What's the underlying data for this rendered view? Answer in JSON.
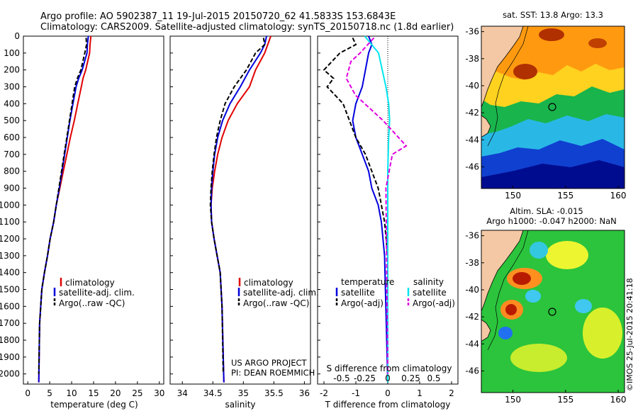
{
  "header": {
    "line1": "Argo profile: AO 5902387_11 19-Jul-2015 20150720_62 41.5833S 153.6843E",
    "line2": "Climatology: CARS2009. Satellite-adjusted climatology: synTS_20150718.nc (1.8d earlier)"
  },
  "colors": {
    "climatology": "#e00000",
    "satellite": "#0000dd",
    "argo": "#000000",
    "salinity_satellite": "#00e5ee",
    "salinity_argo": "#e000e0"
  },
  "chart_data": [
    {
      "type": "line",
      "id": "temperature",
      "xlabel": "temperature (deg C)",
      "ylabel": "",
      "xlim": [
        -1,
        31
      ],
      "ylim": [
        2060,
        0
      ],
      "xticks": [
        "0",
        "5",
        "10",
        "15",
        "20",
        "25",
        "30"
      ],
      "yticks": [
        "0",
        "100",
        "200",
        "300",
        "400",
        "500",
        "600",
        "700",
        "800",
        "900",
        "1000",
        "1100",
        "1200",
        "1300",
        "1400",
        "1500",
        "1600",
        "1700",
        "1800",
        "1900",
        "2000"
      ],
      "legend": [
        "climatology",
        "satellite-adj. clim.",
        "Argo(..raw -QC)"
      ],
      "series": [
        {
          "name": "climatology",
          "style": "solid",
          "x": [
            14.4,
            14.2,
            14.1,
            13.2,
            12.6,
            12.2,
            11.4,
            10.6,
            9.7,
            8.9,
            8.1,
            7.3,
            6.5,
            5.9,
            5.1,
            4.5,
            3.8,
            3.2,
            2.7,
            2.5
          ],
          "y": [
            0,
            50,
            100,
            200,
            250,
            300,
            400,
            500,
            600,
            700,
            800,
            900,
            1000,
            1100,
            1200,
            1300,
            1400,
            1500,
            1700,
            2050
          ]
        },
        {
          "name": "satellite",
          "style": "solid",
          "x": [
            13.8,
            13.6,
            13.5,
            12.4,
            11.6,
            11.0,
            10.3,
            9.6,
            9.0,
            8.4,
            7.8,
            7.2,
            6.5,
            5.9,
            5.1,
            4.5,
            3.8,
            3.2,
            2.7,
            2.5
          ],
          "y": [
            0,
            50,
            100,
            200,
            250,
            300,
            400,
            500,
            600,
            700,
            800,
            900,
            1000,
            1100,
            1200,
            1300,
            1400,
            1500,
            1700,
            2050
          ]
        },
        {
          "name": "argo",
          "style": "dash",
          "x": [
            13.3,
            13.4,
            13.0,
            12.1,
            11.3,
            10.7,
            10.1,
            9.5,
            8.9,
            8.3,
            7.7,
            7.1,
            6.5,
            5.9,
            5.1,
            4.5,
            3.8,
            3.2,
            2.7,
            2.5
          ],
          "y": [
            10,
            50,
            100,
            200,
            250,
            300,
            400,
            500,
            600,
            700,
            800,
            900,
            1000,
            1100,
            1200,
            1300,
            1400,
            1500,
            1700,
            2000
          ]
        }
      ]
    },
    {
      "type": "line",
      "id": "salinity",
      "xlabel": "salinity",
      "ylabel": "",
      "xlim": [
        33.8,
        36.1
      ],
      "ylim": [
        2060,
        0
      ],
      "xticks": [
        "34",
        "34.5",
        "35",
        "35.5",
        "36"
      ],
      "legend": [
        "climatology",
        "satellite-adj. clim.",
        "Argo(..raw -QC)"
      ],
      "annotation": [
        "US ARGO PROJECT",
        "PI: DEAN ROEMMICH"
      ],
      "series": [
        {
          "name": "climatology",
          "style": "solid",
          "x": [
            35.45,
            35.4,
            35.35,
            35.2,
            35.1,
            34.9,
            34.75,
            34.65,
            34.58,
            34.53,
            34.49,
            34.47,
            34.48,
            34.52,
            34.57,
            34.62,
            34.65,
            34.68
          ],
          "y": [
            0,
            50,
            100,
            200,
            300,
            400,
            500,
            600,
            700,
            800,
            900,
            1000,
            1100,
            1200,
            1300,
            1400,
            1600,
            2050
          ]
        },
        {
          "name": "satellite",
          "style": "solid",
          "x": [
            35.38,
            35.35,
            35.28,
            35.1,
            34.95,
            34.78,
            34.66,
            34.58,
            34.53,
            34.5,
            34.48,
            34.47,
            34.48,
            34.52,
            34.57,
            34.62,
            34.65,
            34.68
          ],
          "y": [
            0,
            50,
            100,
            200,
            300,
            400,
            500,
            600,
            700,
            800,
            900,
            1000,
            1100,
            1200,
            1300,
            1400,
            1600,
            2050
          ]
        },
        {
          "name": "argo",
          "style": "dash",
          "x": [
            35.33,
            35.35,
            35.2,
            35.05,
            34.85,
            34.7,
            34.62,
            34.56,
            34.52,
            34.49,
            34.47,
            34.46,
            34.48,
            34.52,
            34.57,
            34.62,
            34.65,
            34.67
          ],
          "y": [
            10,
            50,
            100,
            200,
            300,
            400,
            500,
            600,
            700,
            800,
            900,
            1000,
            1100,
            1200,
            1300,
            1400,
            1600,
            2000
          ]
        }
      ]
    },
    {
      "type": "line",
      "id": "difference",
      "xlabel": "T difference from climatology",
      "s_axis_label": "S difference from climatology",
      "xlim": [
        -2.2,
        2.2
      ],
      "ylim": [
        2060,
        0
      ],
      "xticks": [
        "-2",
        "-1",
        "0",
        "1",
        "2"
      ],
      "s_ticks": [
        "-0.5",
        "-0.25",
        "0",
        "0.25",
        "0.5"
      ],
      "legend_temperature": [
        "temperature",
        "satellite",
        "Argo(-adj)"
      ],
      "legend_salinity": [
        "salinity",
        "satellite",
        "Argo(-adj)"
      ],
      "series": [
        {
          "name": "T satellite",
          "style": "solid",
          "x": [
            -0.6,
            -0.5,
            -0.6,
            -0.7,
            -0.8,
            -1.0,
            -1.1,
            -1.0,
            -0.8,
            -0.6,
            -0.5,
            -0.3,
            -0.2,
            -0.1,
            0
          ],
          "y": [
            0,
            50,
            100,
            200,
            300,
            400,
            500,
            600,
            700,
            800,
            900,
            1000,
            1100,
            1300,
            2050
          ]
        },
        {
          "name": "T argo",
          "style": "dash",
          "x": [
            -1.1,
            -1.0,
            -1.5,
            -2.0,
            -1.7,
            -1.9,
            -1.4,
            -1.2,
            -1.0,
            -0.7,
            -0.3,
            -0.1,
            0,
            0
          ],
          "y": [
            10,
            50,
            100,
            200,
            250,
            300,
            400,
            500,
            600,
            700,
            900,
            1100,
            1300,
            2000
          ]
        },
        {
          "name": "S satellite",
          "style": "solid",
          "x": [
            -0.25,
            -0.1,
            -0.06,
            -0.02,
            0.01,
            0.02,
            0.01,
            0,
            0,
            0
          ],
          "y": [
            0,
            100,
            200,
            300,
            400,
            500,
            600,
            800,
            1000,
            2050
          ]
        },
        {
          "name": "S argo",
          "style": "dash",
          "x": [
            -0.15,
            -0.3,
            -0.4,
            -0.45,
            -0.35,
            -0.05,
            0.2,
            0.05,
            -0.02,
            0
          ],
          "y": [
            10,
            100,
            150,
            250,
            350,
            500,
            650,
            700,
            900,
            2000
          ]
        }
      ]
    },
    {
      "type": "heatmap",
      "id": "sst_map",
      "title": "sat. SST: 13.8 Argo: 13.3",
      "xticks": [
        "150",
        "155",
        "160"
      ],
      "yticks": [
        "-36",
        "-38",
        "-40",
        "-42",
        "-44",
        "-46"
      ],
      "marker": [
        153.68,
        -41.58
      ]
    },
    {
      "type": "heatmap",
      "id": "sla_map",
      "title_line1": "Altim. SLA: -0.015",
      "title_line2": "Argo h1000: -0.047 h2000: NaN",
      "xticks": [
        "150",
        "155",
        "160"
      ],
      "yticks": [
        "-36",
        "-38",
        "-40",
        "-42",
        "-44",
        "-46"
      ],
      "marker": [
        153.68,
        -41.58
      ]
    }
  ],
  "credit": "©IMOS 25-Jul-2015 20:41:18"
}
